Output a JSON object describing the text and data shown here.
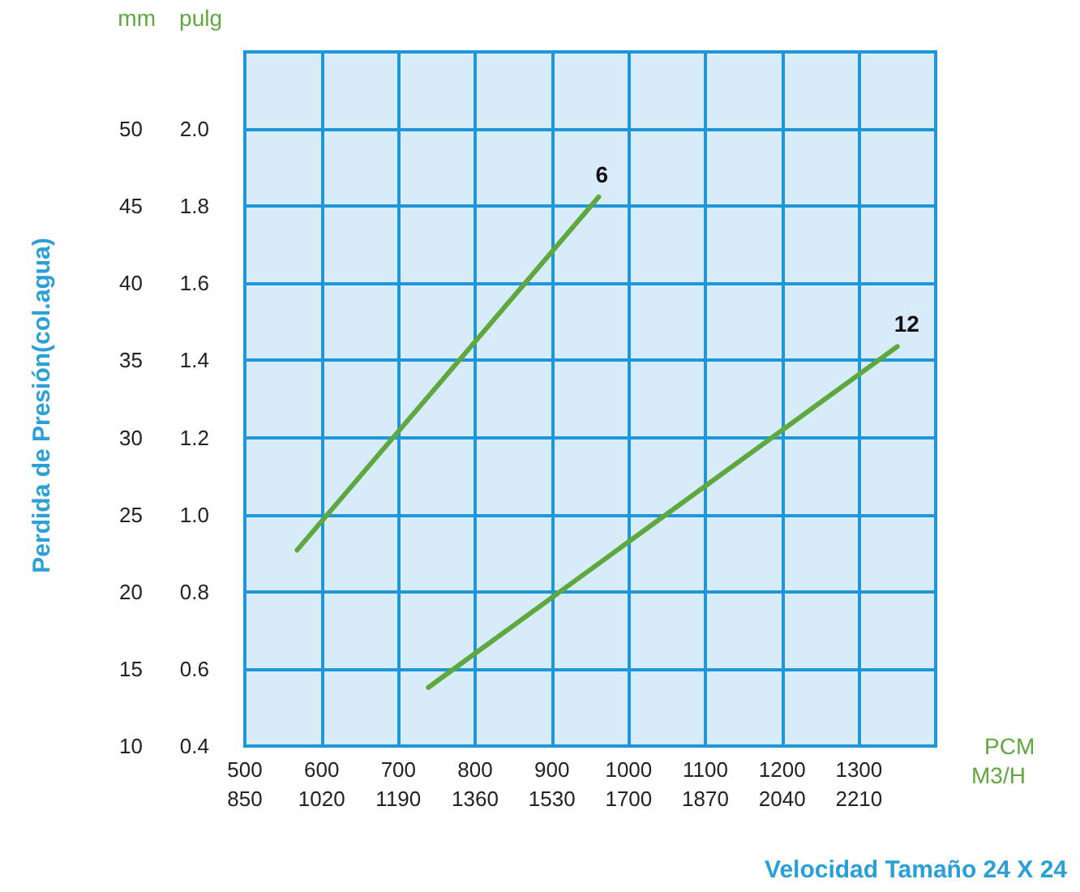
{
  "chart_data": {
    "type": "line",
    "xlabel": "PCM",
    "x2label": "M3/H",
    "ylabel": "mm",
    "y2label": "pulg",
    "annotations": [
      "Perdida de Presión(col.agua)",
      "Velocidad Tamaño 24 X 24"
    ],
    "series": [
      {
        "name": "6",
        "color": "#5fa83f",
        "x": [
          568,
          961
        ],
        "values": [
          22.7,
          45.6
        ]
      },
      {
        "name": "12",
        "color": "#5fa83f",
        "x": [
          739,
          1350
        ],
        "values": [
          13.8,
          35.9
        ]
      }
    ],
    "xlim": [
      500,
      1400
    ],
    "xticks": [
      500,
      600,
      700,
      800,
      900,
      1000,
      1100,
      1200,
      1300
    ],
    "x2lim": [
      850,
      2380
    ],
    "x2ticks": [
      850,
      1020,
      1190,
      1360,
      1530,
      1700,
      1870,
      2040,
      2210
    ],
    "ylim": [
      10,
      55
    ],
    "yticks": [
      10,
      15,
      20,
      25,
      30,
      35,
      40,
      45,
      50
    ],
    "y2lim": [
      0.4,
      2.2
    ],
    "y2ticks": [
      {
        "value": 0.4,
        "label": "0.4"
      },
      {
        "value": 0.6,
        "label": "0.6"
      },
      {
        "value": 0.8,
        "label": "0.8"
      },
      {
        "value": 1,
        "label": "1.0"
      },
      {
        "value": 1.2,
        "label": "1.2"
      },
      {
        "value": 1.4,
        "label": "1.4"
      },
      {
        "value": 1.6,
        "label": "1.6"
      },
      {
        "value": 1.8,
        "label": "1.8"
      },
      {
        "value": 2,
        "label": "2.0"
      }
    ],
    "grid": true,
    "legend": false,
    "marker": "none",
    "line_style": "solid"
  }
}
